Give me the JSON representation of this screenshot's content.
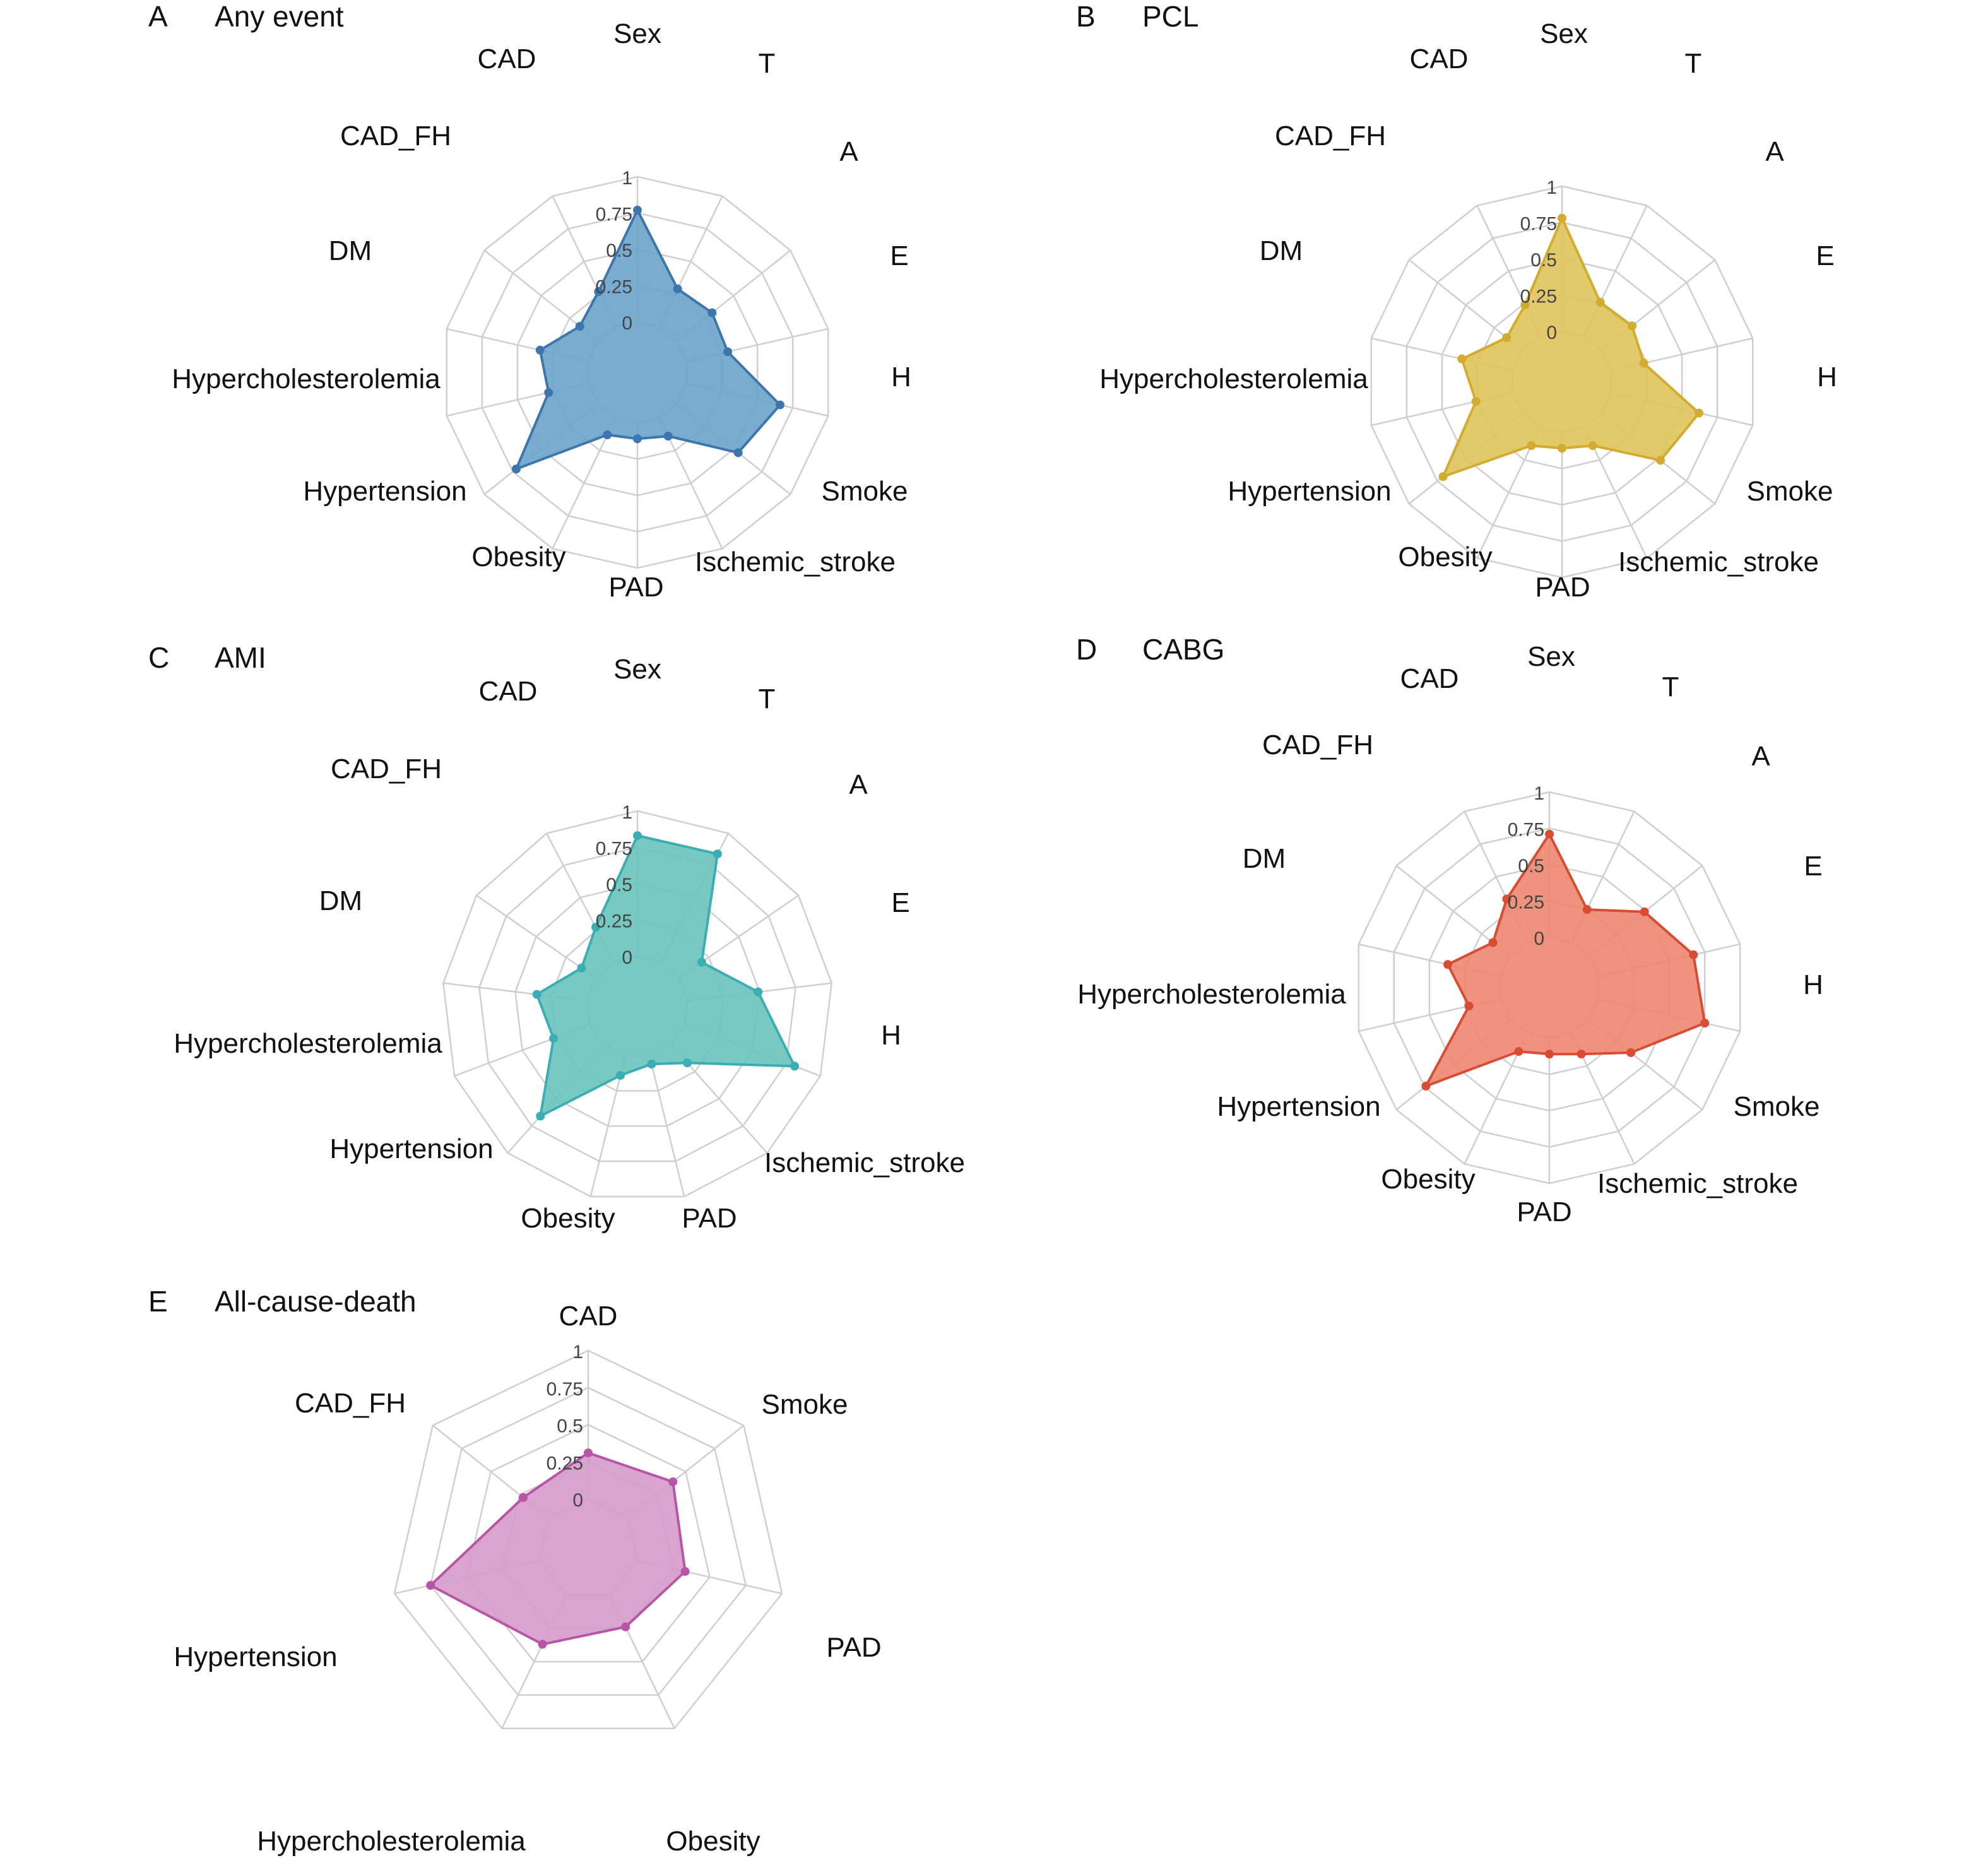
{
  "chart_data": [
    {
      "type": "radar",
      "panel": "A",
      "title": "Any event",
      "axes": [
        "Sex",
        "T",
        "A",
        "E",
        "H",
        "Smoke",
        "Ischemic_stroke",
        "PAD",
        "Obesity",
        "Hypertension",
        "Hypercholesterolemia",
        "DM",
        "CAD_FH",
        "CAD"
      ],
      "ticks": [
        "0",
        "0.25",
        "0.5",
        "0.75",
        "1"
      ],
      "rlim": [
        0,
        1
      ],
      "values": [
        0.77,
        0.29,
        0.31,
        0.29,
        0.66,
        0.54,
        0.14,
        0.11,
        0.13,
        0.72,
        0.28,
        0.34,
        0.16,
        0.27
      ],
      "color": "#3d76ad",
      "fill": "#6ea5cb"
    },
    {
      "type": "radar",
      "panel": "B",
      "title": "PCL",
      "axes": [
        "Sex",
        "T",
        "A",
        "E",
        "H",
        "Smoke",
        "Ischemic_stroke",
        "PAD",
        "Obesity",
        "Hypertension",
        "Hypercholesterolemia",
        "DM",
        "CAD_FH",
        "CAD"
      ],
      "ticks": [
        "0",
        "0.25",
        "0.5",
        "0.75",
        "1"
      ],
      "rlim": [
        0,
        1
      ],
      "values": [
        0.78,
        0.26,
        0.27,
        0.23,
        0.62,
        0.52,
        0.14,
        0.11,
        0.14,
        0.7,
        0.26,
        0.36,
        0.14,
        0.24
      ],
      "color": "#d2ab2f",
      "fill": "#dfc65e"
    },
    {
      "type": "radar",
      "panel": "C",
      "title": "AMI",
      "axes": [
        "Sex",
        "T",
        "A",
        "E",
        "H",
        "Ischemic_stroke",
        "PAD",
        "Obesity",
        "Hypertension",
        "Hypercholesterolemia",
        "DM",
        "CAD_FH",
        "CAD"
      ],
      "ticks": [
        "0",
        "0.25",
        "0.5",
        "0.75",
        "1"
      ],
      "rlim": [
        0,
        1
      ],
      "values": [
        0.83,
        0.84,
        0.19,
        0.49,
        0.81,
        0.17,
        0.06,
        0.14,
        0.66,
        0.27,
        0.35,
        0.12,
        0.27
      ],
      "color": "#3aaeb4",
      "fill": "#6cc4bd"
    },
    {
      "type": "radar",
      "panel": "D",
      "title": "CABG",
      "axes": [
        "Sex",
        "T",
        "A",
        "E",
        "H",
        "Smoke",
        "Ischemic_stroke",
        "PAD",
        "Obesity",
        "Hypertension",
        "Hypercholesterolemia",
        "DM",
        "CAD_FH",
        "CAD"
      ],
      "ticks": [
        "0",
        "0.25",
        "0.5",
        "0.75",
        "1"
      ],
      "rlim": [
        0,
        1
      ],
      "values": [
        0.71,
        0.25,
        0.49,
        0.67,
        0.75,
        0.37,
        0.16,
        0.11,
        0.14,
        0.74,
        0.22,
        0.37,
        0.15,
        0.33
      ],
      "color": "#d94c34",
      "fill": "#ee8a74"
    },
    {
      "type": "radar",
      "panel": "E",
      "title": "All-cause-death",
      "axes": [
        "CAD",
        "Smoke",
        "PAD",
        "Obesity",
        "Hypercholesterolemia",
        "Hypertension",
        "CAD_FH"
      ],
      "ticks": [
        "0",
        "0.25",
        "0.5",
        "0.75",
        "1"
      ],
      "rlim": [
        0,
        1
      ],
      "values": [
        0.31,
        0.39,
        0.33,
        0.24,
        0.37,
        0.75,
        0.22
      ],
      "color": "#b855a7",
      "fill": "#d79ccc"
    }
  ]
}
